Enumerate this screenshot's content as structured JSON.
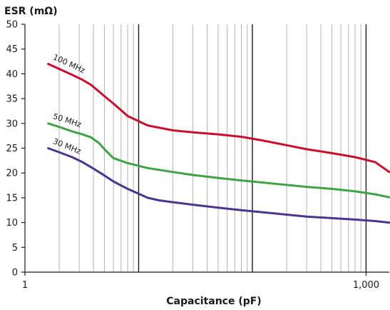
{
  "chart_data": {
    "type": "line",
    "title": "",
    "xlabel": "Capacitance (pF)",
    "ylabel": "ESR (mΩ)",
    "xscale": "log",
    "xlim": [
      1,
      1600
    ],
    "ylim": [
      0,
      50
    ],
    "x_tick_labels": [
      {
        "value": 1,
        "label": "1"
      },
      {
        "value": 1000,
        "label": "1,000"
      }
    ],
    "y_ticks": [
      0,
      5,
      10,
      15,
      20,
      25,
      30,
      35,
      40,
      45,
      50
    ],
    "grid": "vertical",
    "series": [
      {
        "name": "100 MHz",
        "color": "#c8102e",
        "x": [
          1.6,
          2,
          2.6,
          3.2,
          3.8,
          5,
          6,
          8,
          12,
          20,
          30,
          50,
          80,
          120,
          200,
          300,
          500,
          800,
          1200,
          1600
        ],
        "y": [
          42,
          41,
          39.8,
          38.8,
          37.8,
          35.5,
          34,
          31.5,
          29.6,
          28.6,
          28.2,
          27.8,
          27.3,
          26.6,
          25.6,
          24.8,
          24,
          23.2,
          22.2,
          20.2
        ]
      },
      {
        "name": "50 MHz",
        "color": "#3fa346",
        "x": [
          1.6,
          2,
          2.6,
          3.2,
          3.8,
          4.5,
          5,
          6,
          8,
          12,
          20,
          30,
          50,
          80,
          120,
          200,
          300,
          500,
          800,
          1200,
          1600
        ],
        "y": [
          30,
          29.3,
          28.4,
          27.8,
          27.2,
          26,
          24.8,
          23,
          22,
          21,
          20.2,
          19.6,
          19,
          18.5,
          18.1,
          17.6,
          17.2,
          16.8,
          16.3,
          15.7,
          15.1
        ]
      },
      {
        "name": "30 MHz",
        "color": "#4a3592",
        "x": [
          1.6,
          2,
          2.6,
          3.2,
          3.8,
          5,
          6,
          8,
          10,
          12,
          15,
          20,
          30,
          50,
          80,
          120,
          200,
          300,
          500,
          800,
          1200,
          1600
        ],
        "y": [
          25,
          24.2,
          23.2,
          22.2,
          21.2,
          19.5,
          18.3,
          16.8,
          15.8,
          15,
          14.5,
          14.1,
          13.6,
          13,
          12.5,
          12.1,
          11.6,
          11.2,
          10.9,
          10.6,
          10.3,
          10
        ]
      }
    ]
  }
}
